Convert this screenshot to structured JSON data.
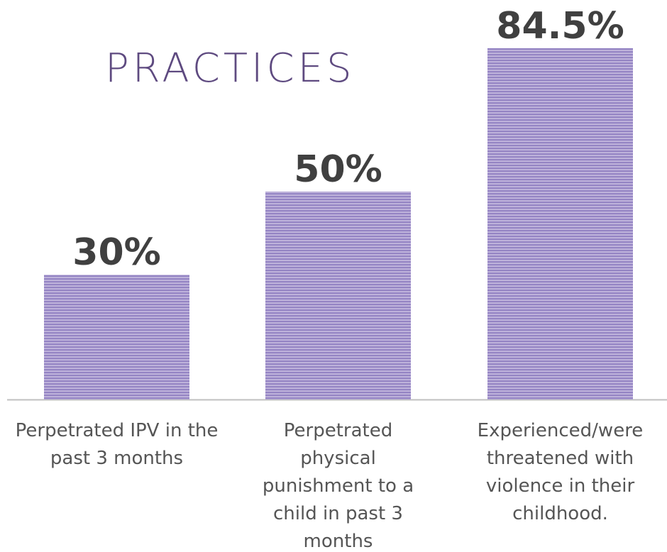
{
  "chart_data": {
    "type": "bar",
    "title": "PRACTICES",
    "categories": [
      "Perpetrated IPV in the past 3 months",
      "Perpetrated physical punishment to a child in past 3 months",
      "Experienced/were threatened with violence in their childhood."
    ],
    "values": [
      30,
      50,
      84.5
    ],
    "value_labels": [
      "30%",
      "50%",
      "84.5%"
    ],
    "color": "#9d8bc9"
  }
}
